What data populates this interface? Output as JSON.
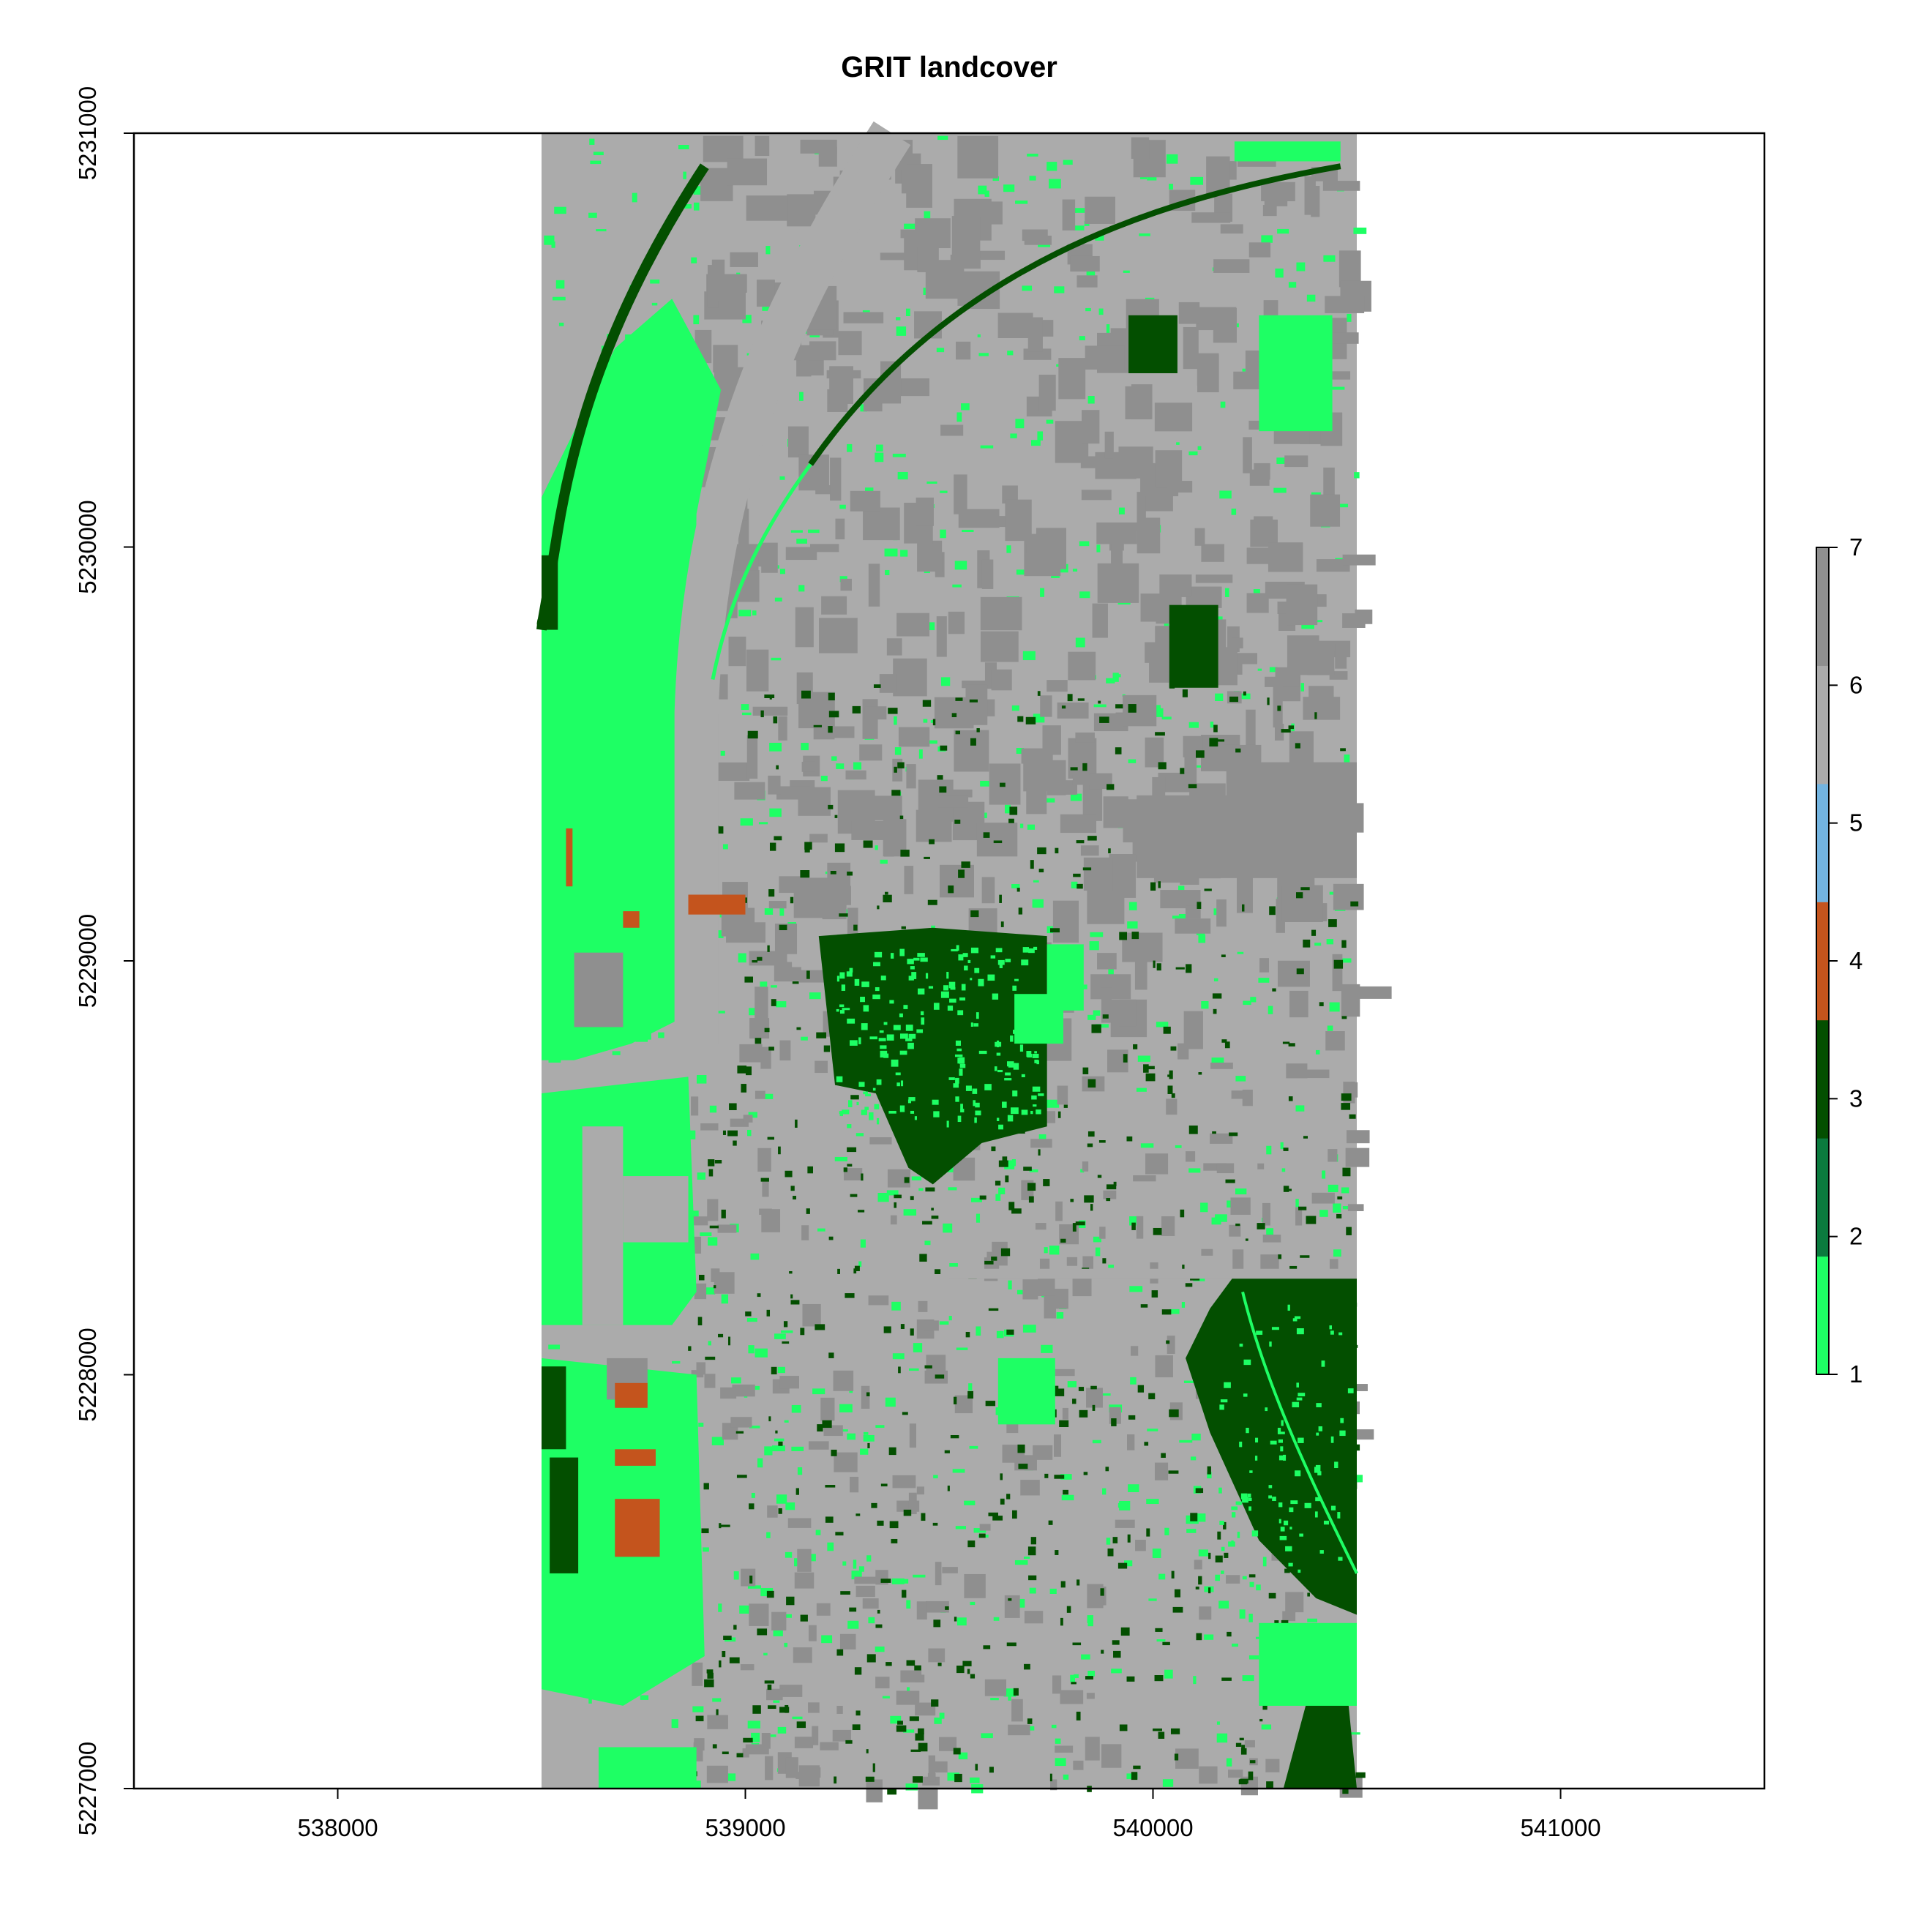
{
  "title": "GRIT landcover",
  "chart_data": {
    "type": "heatmap",
    "title": "GRIT landcover",
    "x_axis": {
      "range": [
        537500,
        541500
      ],
      "ticks": [
        538000,
        539000,
        540000,
        541000
      ],
      "tick_labels": [
        "538000",
        "539000",
        "540000",
        "541000"
      ]
    },
    "y_axis": {
      "range": [
        5227000,
        5231000
      ],
      "ticks": [
        5227000,
        5228000,
        5229000,
        5230000,
        5231000
      ],
      "tick_labels": [
        "5227000",
        "5228000",
        "5229000",
        "5230000",
        "5231000"
      ]
    },
    "raster_extent": {
      "x": [
        538500,
        540500
      ],
      "y": [
        5227000,
        5231000
      ]
    },
    "legend": {
      "placement": "right",
      "range": [
        1,
        7
      ],
      "ticks": [
        1,
        2,
        3,
        4,
        5,
        6,
        7
      ],
      "tick_labels": [
        "1",
        "2",
        "3",
        "4",
        "5",
        "6",
        "7"
      ],
      "classes": [
        {
          "value": 1,
          "color": "#1EFF64"
        },
        {
          "value": 2,
          "color": "#0B7A3E"
        },
        {
          "value": 3,
          "color": "#034F00"
        },
        {
          "value": 4,
          "color": "#C4541D"
        },
        {
          "value": 5,
          "color": "#73B4E0"
        },
        {
          "value": 6,
          "color": "#ABABAB"
        },
        {
          "value": 7,
          "color": "#8F8F8F"
        }
      ]
    },
    "grid": false
  }
}
